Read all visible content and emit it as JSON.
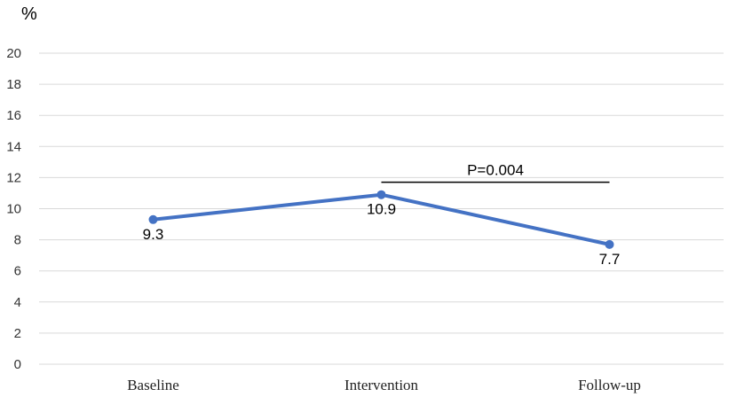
{
  "chart_data": {
    "type": "line",
    "ylabel": "%",
    "categories": [
      "Baseline",
      "Intervention",
      "Follow-up"
    ],
    "series": [
      {
        "values": [
          9.3,
          10.9,
          7.7
        ],
        "color": "#4472c4"
      }
    ],
    "data_labels": [
      "9.3",
      "10.9",
      "7.7"
    ],
    "ylim": [
      0,
      20
    ],
    "yticks": [
      0,
      2,
      4,
      6,
      8,
      10,
      12,
      14,
      16,
      18,
      20
    ],
    "grid": true,
    "gridline_color": "#d9d9d9",
    "annotation": {
      "text": "P=0.004",
      "from_category": "Intervention",
      "to_category": "Follow-up",
      "y": 11.7
    }
  }
}
